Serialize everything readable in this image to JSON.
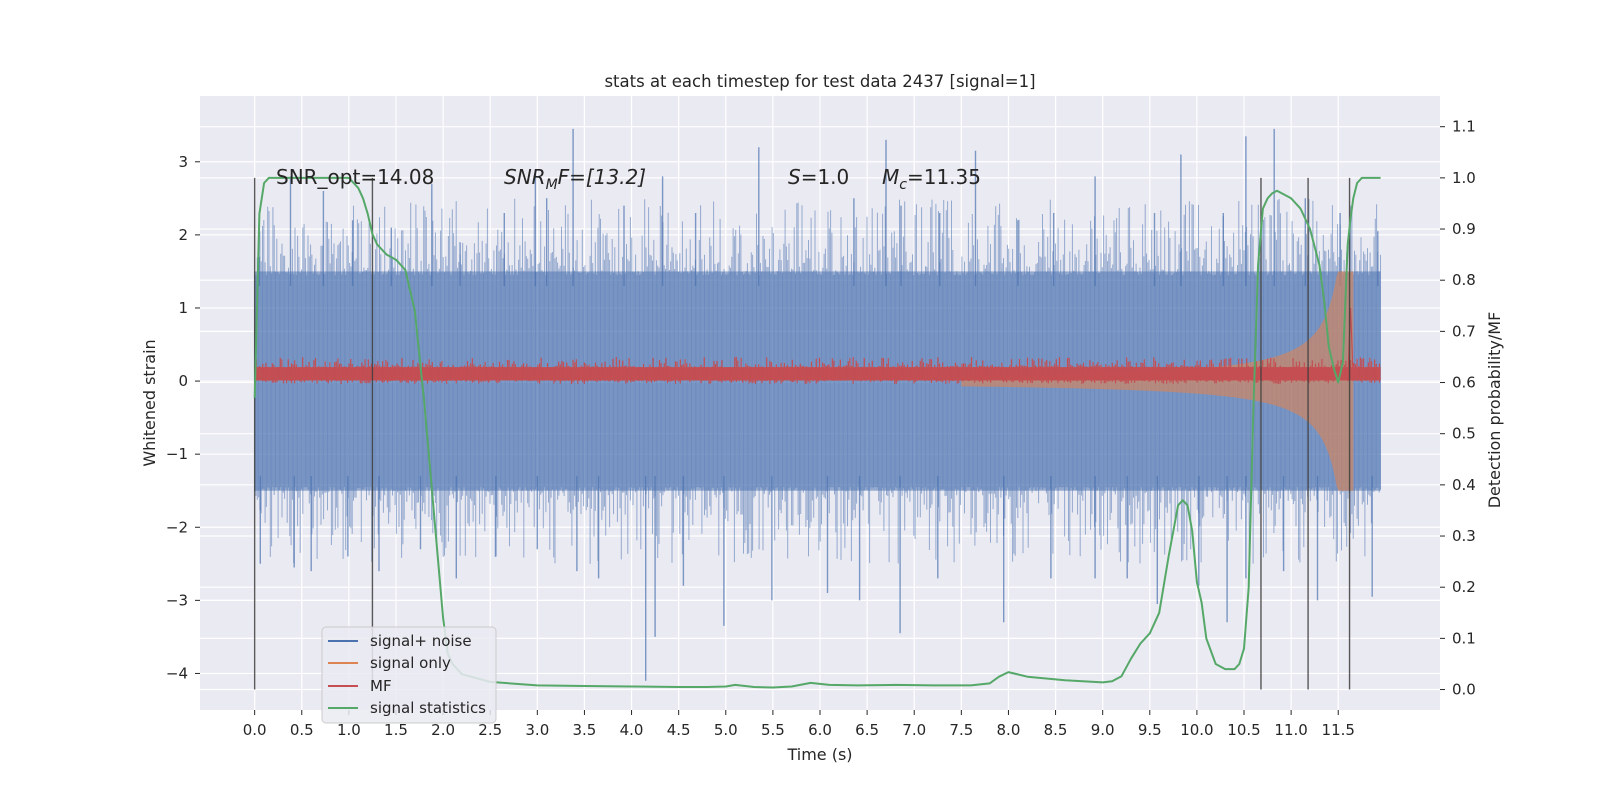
{
  "chart_data": {
    "type": "line",
    "title": "stats at each timestep for test data 2437 [signal=1]",
    "xlabel": "Time (s)",
    "ylabel": "Whitened strain",
    "y2label": "Detection probability/MF",
    "xlim": [
      -0.58,
      12.58
    ],
    "ylim": [
      -4.5,
      3.9
    ],
    "y2lim": [
      -0.04,
      1.16
    ],
    "xticks": [
      0.0,
      0.5,
      1.0,
      1.5,
      2.0,
      2.5,
      3.0,
      3.5,
      4.0,
      4.5,
      5.0,
      5.5,
      6.0,
      6.5,
      7.0,
      7.5,
      8.0,
      8.5,
      9.0,
      9.5,
      10.0,
      10.5,
      11.0,
      11.5
    ],
    "xtick_labels": [
      "0.0",
      "0.5",
      "1.0",
      "1.5",
      "2.0",
      "2.5",
      "3.0",
      "3.5",
      "4.0",
      "4.5",
      "5.0",
      "5.5",
      "6.0",
      "6.5",
      "7.0",
      "7.5",
      "8.0",
      "8.5",
      "9.0",
      "9.5",
      "10.0",
      "10.5",
      "11.0",
      "11.5"
    ],
    "yticks": [
      3,
      2,
      1,
      0,
      -1,
      -2,
      -3,
      -4
    ],
    "ytick_labels": [
      "3",
      "2",
      "1",
      "0",
      "−1",
      "−2",
      "−3",
      "−4"
    ],
    "y2ticks": [
      1.1,
      1.0,
      0.9,
      0.8,
      0.7,
      0.6,
      0.5,
      0.4,
      0.3,
      0.2,
      0.1,
      0.0
    ],
    "y2tick_labels": [
      "1.1",
      "1.0",
      "0.9",
      "0.8",
      "0.7",
      "0.6",
      "0.5",
      "0.4",
      "0.3",
      "0.2",
      "0.1",
      "0.0"
    ],
    "grid": true,
    "legend_position": "lower-left",
    "annotations": {
      "snr_opt": "SNR_opt=14.08",
      "snr_mf_sym": "SNR",
      "snr_mf_sub": "M",
      "snr_mf_rest": "F=[13.2]",
      "s_sym": "S",
      "s_rest": "=1.0",
      "mc_sym": "M",
      "mc_sub": "c",
      "mc_rest": "=11.35"
    },
    "vertical_lines_x": [
      0.0,
      1.25,
      10.68,
      11.18,
      11.62
    ],
    "vertical_lines_y2_range": [
      0.0,
      1.0
    ],
    "series": [
      {
        "name": "signal+ noise",
        "color": "#4c72b0",
        "kind": "noise",
        "x_range": [
          0.0,
          11.95
        ],
        "body_half_width": 1.5,
        "spike_peaks_high": [
          [
            0.05,
            1.7
          ],
          [
            0.38,
            2.8
          ],
          [
            0.73,
            2.6
          ],
          [
            1.04,
            2.2
          ],
          [
            1.45,
            2.1
          ],
          [
            1.88,
            2.7
          ],
          [
            2.18,
            1.9
          ],
          [
            2.65,
            2.3
          ],
          [
            2.98,
            2.9
          ],
          [
            3.1,
            2.5
          ],
          [
            3.38,
            3.45
          ],
          [
            3.92,
            2.4
          ],
          [
            4.33,
            2.8
          ],
          [
            4.68,
            2.3
          ],
          [
            5.35,
            3.2
          ],
          [
            6.36,
            2.5
          ],
          [
            6.7,
            3.3
          ],
          [
            6.86,
            2.4
          ],
          [
            7.27,
            2.3
          ],
          [
            7.65,
            3.15
          ],
          [
            8.1,
            2.2
          ],
          [
            8.48,
            2.3
          ],
          [
            8.92,
            2.8
          ],
          [
            9.55,
            2.3
          ],
          [
            9.83,
            3.1
          ],
          [
            10.28,
            2.3
          ],
          [
            10.52,
            3.35
          ],
          [
            10.82,
            3.45
          ],
          [
            11.15,
            2.5
          ],
          [
            11.52,
            2.3
          ],
          [
            11.92,
            2.05
          ]
        ],
        "spike_peaks_low": [
          [
            0.06,
            -2.5
          ],
          [
            0.42,
            -2.55
          ],
          [
            0.6,
            -2.6
          ],
          [
            0.99,
            -2.4
          ],
          [
            1.32,
            -2.6
          ],
          [
            1.76,
            -2.3
          ],
          [
            2.14,
            -2.7
          ],
          [
            2.56,
            -2.4
          ],
          [
            3.0,
            -2.3
          ],
          [
            3.42,
            -2.6
          ],
          [
            3.65,
            -2.7
          ],
          [
            4.15,
            -4.1
          ],
          [
            4.25,
            -3.5
          ],
          [
            4.55,
            -2.8
          ],
          [
            4.98,
            -3.35
          ],
          [
            5.49,
            -3.0
          ],
          [
            6.08,
            -2.9
          ],
          [
            6.42,
            -3.0
          ],
          [
            6.85,
            -3.45
          ],
          [
            7.25,
            -2.7
          ],
          [
            7.95,
            -3.3
          ],
          [
            8.45,
            -2.7
          ],
          [
            8.92,
            -2.7
          ],
          [
            9.26,
            -2.7
          ],
          [
            9.58,
            -3.05
          ],
          [
            10.02,
            -2.8
          ],
          [
            10.32,
            -3.3
          ],
          [
            10.52,
            -2.7
          ],
          [
            10.92,
            -2.6
          ],
          [
            11.28,
            -3.0
          ],
          [
            11.86,
            -2.95
          ]
        ]
      },
      {
        "name": "signal only",
        "color": "#dd8452",
        "kind": "chirp",
        "start_x": 7.5,
        "end_x": 11.66,
        "peak_amplitude": 1.5
      },
      {
        "name": "MF",
        "color": "#c44e52",
        "kind": "mf",
        "x_range": [
          0.0,
          11.95
        ],
        "center": 0.1,
        "half_width": 0.09,
        "spike_x": 11.6,
        "spike_peak": 1.0
      },
      {
        "name": "signal statistics",
        "color": "#55a868",
        "kind": "line",
        "x": [
          0.0,
          0.05,
          0.1,
          0.15,
          0.2,
          0.3,
          0.5,
          0.7,
          0.9,
          1.0,
          1.05,
          1.1,
          1.15,
          1.2,
          1.25,
          1.3,
          1.4,
          1.5,
          1.6,
          1.7,
          1.8,
          1.9,
          2.0,
          2.05,
          2.1,
          2.2,
          2.5,
          3.0,
          3.5,
          4.0,
          4.5,
          4.8,
          5.0,
          5.1,
          5.3,
          5.5,
          5.7,
          5.9,
          6.1,
          6.4,
          6.8,
          7.2,
          7.6,
          7.8,
          7.9,
          8.0,
          8.2,
          8.6,
          9.0,
          9.1,
          9.2,
          9.3,
          9.4,
          9.5,
          9.6,
          9.7,
          9.8,
          9.85,
          9.9,
          9.95,
          10.0,
          10.05,
          10.1,
          10.2,
          10.3,
          10.4,
          10.45,
          10.5,
          10.55,
          10.6,
          10.65,
          10.7,
          10.75,
          10.8,
          10.85,
          10.9,
          11.0,
          11.1,
          11.2,
          11.3,
          11.35,
          11.4,
          11.45,
          11.5,
          11.55,
          11.6,
          11.63,
          11.66,
          11.7,
          11.75,
          11.85,
          11.95
        ],
        "y": [
          0.57,
          0.93,
          0.99,
          1.0,
          1.0,
          1.0,
          1.0,
          1.0,
          1.0,
          1.0,
          0.99,
          0.98,
          0.96,
          0.93,
          0.89,
          0.87,
          0.85,
          0.84,
          0.82,
          0.74,
          0.56,
          0.35,
          0.14,
          0.07,
          0.05,
          0.03,
          0.015,
          0.008,
          0.007,
          0.006,
          0.005,
          0.005,
          0.006,
          0.009,
          0.005,
          0.004,
          0.006,
          0.013,
          0.009,
          0.008,
          0.009,
          0.008,
          0.008,
          0.012,
          0.025,
          0.034,
          0.025,
          0.018,
          0.014,
          0.016,
          0.026,
          0.06,
          0.09,
          0.11,
          0.15,
          0.26,
          0.36,
          0.37,
          0.36,
          0.31,
          0.21,
          0.17,
          0.1,
          0.05,
          0.04,
          0.04,
          0.05,
          0.08,
          0.2,
          0.55,
          0.83,
          0.94,
          0.96,
          0.97,
          0.975,
          0.97,
          0.96,
          0.94,
          0.9,
          0.83,
          0.76,
          0.67,
          0.63,
          0.6,
          0.64,
          0.87,
          0.92,
          0.96,
          0.99,
          1.0,
          1.0,
          1.0
        ]
      }
    ]
  }
}
